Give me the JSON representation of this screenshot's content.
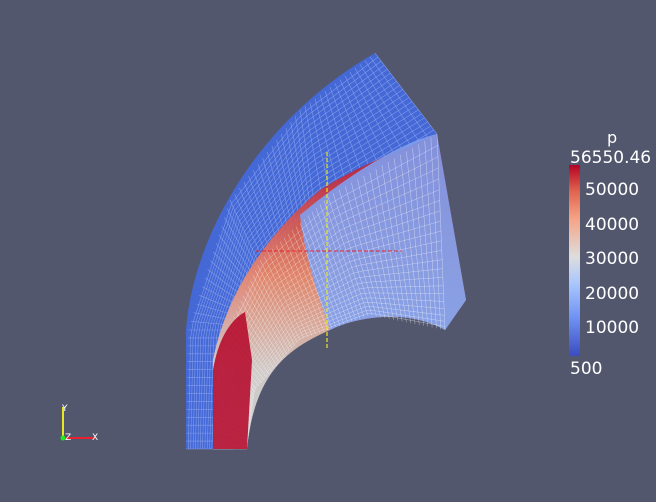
{
  "scalar_bar": {
    "title": "p",
    "max_label": "56550.46",
    "min_label": "500",
    "ticks": [
      "50000",
      "40000",
      "30000",
      "20000",
      "10000"
    ],
    "colors": [
      "#b40426",
      "#e0654f",
      "#f6a385",
      "#dddddd",
      "#aac7fd",
      "#6f92f3",
      "#3b4cc0"
    ]
  },
  "orientation_axes": {
    "labels": {
      "y": "Y",
      "z": "Z",
      "x": "X"
    },
    "colors": {
      "x": "#e8222f",
      "y": "#e8e822",
      "z": "#22e822"
    }
  },
  "background_color": "#52576e"
}
